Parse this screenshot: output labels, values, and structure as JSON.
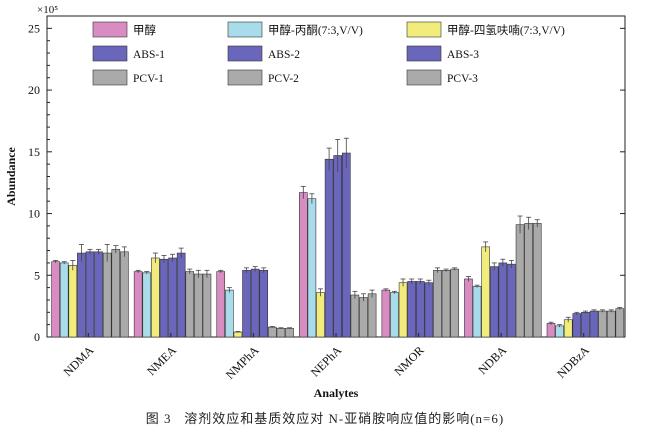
{
  "chart_data": {
    "type": "bar",
    "xlabel": "Analytes",
    "ylabel": "Abundance",
    "y_exponent": "×10⁵",
    "ylim": [
      0,
      26
    ],
    "yticks": [
      "0",
      "5",
      "10",
      "15",
      "20",
      "25"
    ],
    "grid": false,
    "legend_position": "top",
    "categories": [
      "NDMA",
      "NMEA",
      "NMPhA",
      "NEPhA",
      "NMOR",
      "NDBA",
      "NDBzA"
    ],
    "series": [
      {
        "name": "甲醇",
        "color": "#d98cc2",
        "values": [
          6.1,
          5.3,
          5.3,
          11.7,
          3.8,
          4.7,
          1.1
        ],
        "errors": [
          0.1,
          0.1,
          0.1,
          0.5,
          0.1,
          0.2,
          0.1
        ]
      },
      {
        "name": "甲醇-丙酮(7:3,V/V)",
        "color": "#a8dcea",
        "values": [
          6.0,
          5.2,
          3.8,
          11.2,
          3.6,
          4.1,
          0.9
        ],
        "errors": [
          0.1,
          0.1,
          0.2,
          0.4,
          0.1,
          0.1,
          0.1
        ]
      },
      {
        "name": "甲醇-四氢呋喃(7:3,V/V)",
        "color": "#f1ec7c",
        "values": [
          5.8,
          6.4,
          0.4,
          3.6,
          4.4,
          7.3,
          1.4
        ],
        "errors": [
          0.4,
          0.4,
          0.05,
          0.3,
          0.3,
          0.4,
          0.2
        ]
      },
      {
        "name": "ABS-1",
        "color": "#6a66bb",
        "values": [
          6.8,
          6.3,
          5.4,
          14.4,
          4.5,
          5.7,
          1.9
        ],
        "errors": [
          0.7,
          0.3,
          0.2,
          0.9,
          0.2,
          0.3,
          0.1
        ]
      },
      {
        "name": "ABS-2",
        "color": "#6a66bb",
        "values": [
          6.9,
          6.4,
          5.5,
          14.7,
          4.5,
          6.0,
          2.0
        ],
        "errors": [
          0.2,
          0.3,
          0.2,
          1.3,
          0.2,
          0.3,
          0.1
        ]
      },
      {
        "name": "ABS-3",
        "color": "#6a66bb",
        "values": [
          6.9,
          6.8,
          5.4,
          14.9,
          4.4,
          5.9,
          2.1
        ],
        "errors": [
          0.2,
          0.4,
          0.2,
          1.2,
          0.2,
          0.3,
          0.1
        ]
      },
      {
        "name": "PCV-1",
        "color": "#aaaaaa",
        "values": [
          6.8,
          5.3,
          0.8,
          3.4,
          5.4,
          9.1,
          2.1
        ],
        "errors": [
          0.7,
          0.2,
          0.05,
          0.3,
          0.2,
          0.7,
          0.1
        ]
      },
      {
        "name": "PCV-2",
        "color": "#aaaaaa",
        "values": [
          7.1,
          5.1,
          0.7,
          3.2,
          5.4,
          9.2,
          2.1
        ],
        "errors": [
          0.3,
          0.3,
          0.05,
          0.3,
          0.1,
          0.5,
          0.1
        ]
      },
      {
        "name": "PCV-3",
        "color": "#aaaaaa",
        "values": [
          6.9,
          5.1,
          0.7,
          3.5,
          5.5,
          9.2,
          2.3
        ],
        "errors": [
          0.4,
          0.3,
          0.05,
          0.3,
          0.1,
          0.3,
          0.1
        ]
      }
    ],
    "bar_stroke": "#333333",
    "errorbar_color": "#444444"
  },
  "caption": "图 3   溶剂效应和基质效应对 N-亚硝胺响应值的影响(n=6)"
}
